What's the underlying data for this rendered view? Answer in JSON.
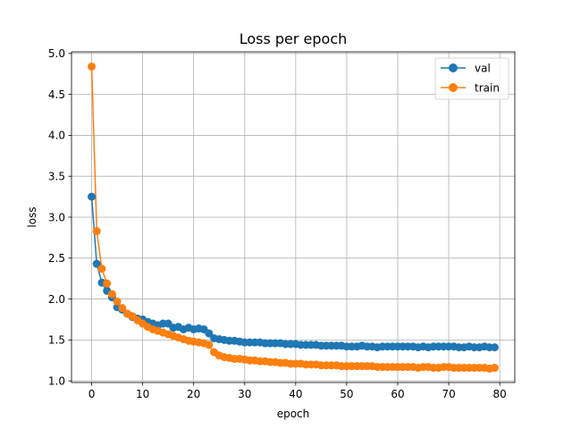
{
  "chart_data": {
    "type": "line",
    "title": "Loss per epoch",
    "xlabel": "epoch",
    "ylabel": "loss",
    "xlim": [
      -3.95,
      82.95
    ],
    "ylim": [
      0.98,
      5.02
    ],
    "xticks": [
      0,
      10,
      20,
      30,
      40,
      50,
      60,
      70,
      80
    ],
    "xtick_labels": [
      "0",
      "10",
      "20",
      "30",
      "40",
      "50",
      "60",
      "70",
      "80"
    ],
    "yticks": [
      1.0,
      1.5,
      2.0,
      2.5,
      3.0,
      3.5,
      4.0,
      4.5,
      5.0
    ],
    "ytick_labels": [
      "1.0",
      "1.5",
      "2.0",
      "2.5",
      "3.0",
      "3.5",
      "4.0",
      "4.5",
      "5.0"
    ],
    "grid": true,
    "legend": "upper right",
    "series": [
      {
        "name": "val",
        "color": "#1f77b4",
        "marker": "circle",
        "values": [
          3.25,
          2.43,
          2.2,
          2.1,
          2.02,
          1.9,
          1.87,
          1.82,
          1.78,
          1.76,
          1.75,
          1.72,
          1.7,
          1.68,
          1.7,
          1.7,
          1.65,
          1.66,
          1.63,
          1.65,
          1.63,
          1.64,
          1.63,
          1.58,
          1.52,
          1.51,
          1.5,
          1.49,
          1.49,
          1.48,
          1.47,
          1.47,
          1.47,
          1.47,
          1.46,
          1.46,
          1.46,
          1.46,
          1.45,
          1.45,
          1.45,
          1.44,
          1.44,
          1.44,
          1.44,
          1.43,
          1.43,
          1.43,
          1.43,
          1.43,
          1.42,
          1.42,
          1.42,
          1.43,
          1.42,
          1.42,
          1.41,
          1.42,
          1.42,
          1.42,
          1.42,
          1.42,
          1.42,
          1.42,
          1.41,
          1.42,
          1.41,
          1.42,
          1.42,
          1.42,
          1.42,
          1.42,
          1.41,
          1.41,
          1.42,
          1.41,
          1.41,
          1.42,
          1.41,
          1.41
        ]
      },
      {
        "name": "train",
        "color": "#ff7f0e",
        "marker": "circle",
        "values": [
          4.84,
          2.83,
          2.37,
          2.19,
          2.06,
          1.97,
          1.89,
          1.82,
          1.79,
          1.74,
          1.7,
          1.66,
          1.63,
          1.61,
          1.59,
          1.57,
          1.55,
          1.53,
          1.51,
          1.49,
          1.48,
          1.47,
          1.46,
          1.44,
          1.35,
          1.31,
          1.29,
          1.28,
          1.27,
          1.27,
          1.26,
          1.25,
          1.25,
          1.24,
          1.24,
          1.23,
          1.23,
          1.22,
          1.22,
          1.21,
          1.21,
          1.21,
          1.2,
          1.2,
          1.2,
          1.19,
          1.19,
          1.19,
          1.19,
          1.18,
          1.18,
          1.18,
          1.18,
          1.18,
          1.18,
          1.18,
          1.17,
          1.17,
          1.17,
          1.17,
          1.17,
          1.17,
          1.17,
          1.17,
          1.16,
          1.17,
          1.17,
          1.16,
          1.16,
          1.17,
          1.17,
          1.16,
          1.16,
          1.16,
          1.16,
          1.16,
          1.16,
          1.16,
          1.15,
          1.16
        ]
      }
    ]
  }
}
